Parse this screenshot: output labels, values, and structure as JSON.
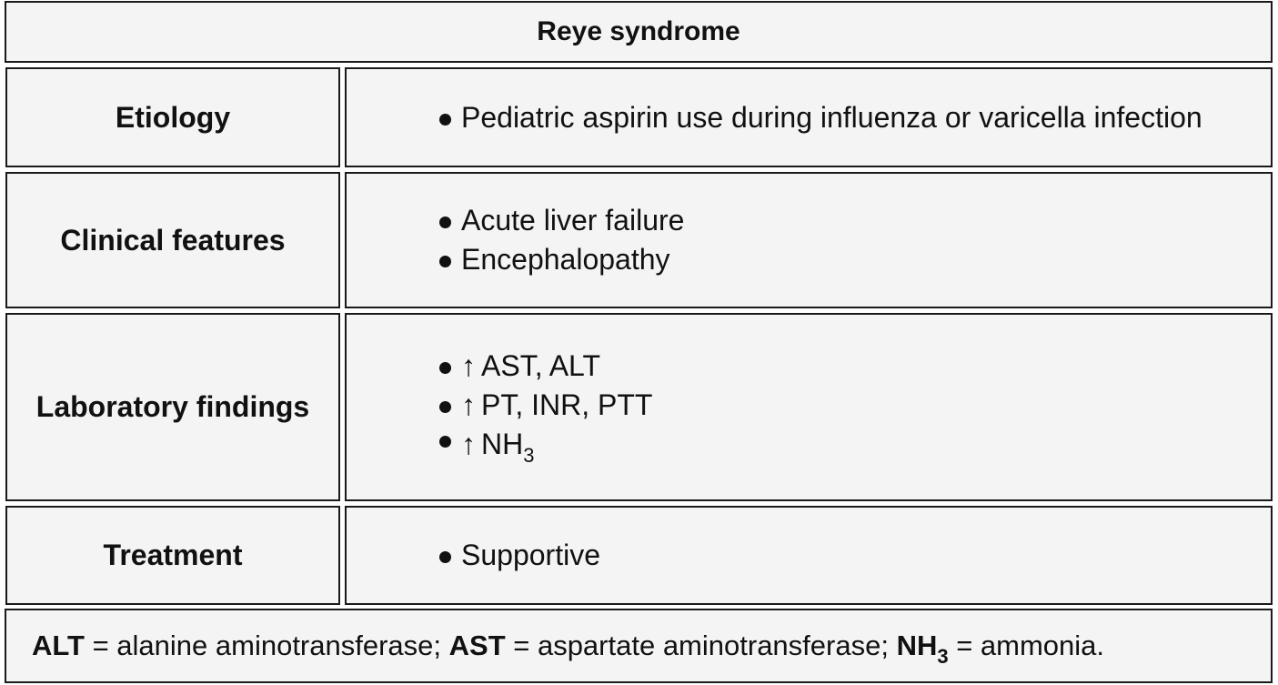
{
  "title": "Reye syndrome",
  "rows": {
    "etiology": {
      "label": "Etiology",
      "items": [
        "Pediatric aspirin use during influenza or varicella infection"
      ]
    },
    "clinical": {
      "label": "Clinical features",
      "items": [
        "Acute liver failure",
        "Encephalopathy"
      ]
    },
    "lab": {
      "label": "Laboratory findings",
      "arrow": "↑",
      "items": [
        "AST, ALT",
        "PT, INR, PTT"
      ],
      "nh3_base": "NH",
      "nh3_sub": "3"
    },
    "treatment": {
      "label": "Treatment",
      "items": [
        "Supportive"
      ]
    }
  },
  "footer": {
    "alt_abbr": "ALT",
    "alt_def": " = alanine aminotransferase; ",
    "ast_abbr": "AST",
    "ast_def": " = aspartate aminotransferase; ",
    "nh3_base": "NH",
    "nh3_sub": "3",
    "nh3_def": " = ammonia."
  }
}
